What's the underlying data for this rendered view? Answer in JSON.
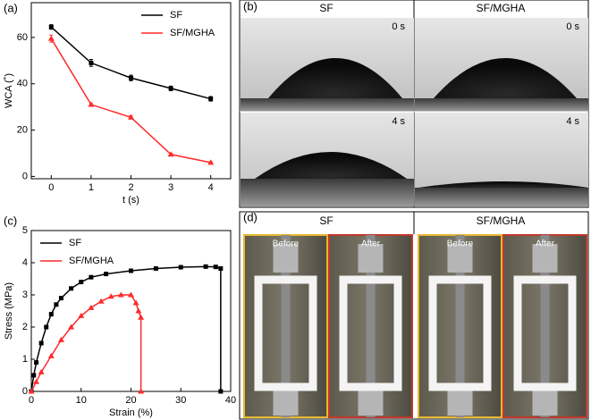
{
  "chart_data": [
    {
      "type": "line",
      "panel": "(a)",
      "x_label": "t (s)",
      "y_label": "WCA (˚)",
      "x": [
        0,
        1,
        2,
        3,
        4
      ],
      "series": [
        {
          "name": "SF",
          "color": "#000000",
          "marker": "square",
          "values": [
            64.5,
            49,
            42.5,
            38,
            33.5
          ],
          "errors": [
            1,
            1.5,
            1.2,
            1,
            1
          ]
        },
        {
          "name": "SF/MGHA",
          "color": "#ff2a2a",
          "marker": "triangle",
          "values": [
            59.5,
            31,
            25.5,
            9.5,
            6
          ],
          "errors": [
            1.5,
            0.5,
            0.7,
            0.5,
            0.4
          ]
        }
      ],
      "xlim": [
        -0.5,
        4.5
      ],
      "xticks": [
        0,
        1,
        2,
        3,
        4
      ],
      "ylim": [
        -1,
        75
      ],
      "yticks": [
        0,
        20,
        40,
        60
      ],
      "legend": "top-right"
    },
    {
      "type": "line",
      "panel": "(c)",
      "x_label": "Strain (%)",
      "y_label": "Stress (MPa)",
      "series": [
        {
          "name": "SF",
          "color": "#000000",
          "marker": "square",
          "x": [
            0,
            0.5,
            1,
            2,
            3,
            4,
            5,
            6,
            8,
            10,
            12,
            15,
            20,
            25,
            30,
            35,
            37,
            38,
            38
          ],
          "values": [
            0,
            0.5,
            0.9,
            1.5,
            2.0,
            2.4,
            2.7,
            2.9,
            3.2,
            3.4,
            3.55,
            3.65,
            3.75,
            3.82,
            3.86,
            3.88,
            3.87,
            3.82,
            0
          ]
        },
        {
          "name": "SF/MGHA",
          "color": "#ff2a2a",
          "marker": "triangle",
          "x": [
            0,
            1,
            2,
            4,
            6,
            8,
            10,
            12,
            14,
            16,
            18,
            20,
            21,
            21.5,
            22,
            22
          ],
          "values": [
            0,
            0.3,
            0.6,
            1.1,
            1.6,
            2.0,
            2.35,
            2.6,
            2.8,
            2.95,
            3.0,
            3.0,
            2.75,
            2.5,
            2.3,
            0
          ]
        }
      ],
      "xlim": [
        0,
        40
      ],
      "xticks": [
        0,
        10,
        20,
        30,
        40
      ],
      "ylim": [
        0,
        5
      ],
      "yticks": [
        0,
        1,
        2,
        3,
        4,
        5
      ],
      "legend": "top-left"
    }
  ],
  "photos_b": {
    "label": "(b)",
    "columns": [
      {
        "title": "SF",
        "frames": [
          "0 s",
          "4 s"
        ]
      },
      {
        "title": "SF/MGHA",
        "frames": [
          "0 s",
          "4 s"
        ]
      }
    ]
  },
  "photos_d": {
    "label": "(d)",
    "columns": [
      {
        "title": "SF",
        "frames": [
          "Before",
          "After"
        ]
      },
      {
        "title": "SF/MGHA",
        "frames": [
          "Before",
          "After"
        ]
      }
    ]
  }
}
